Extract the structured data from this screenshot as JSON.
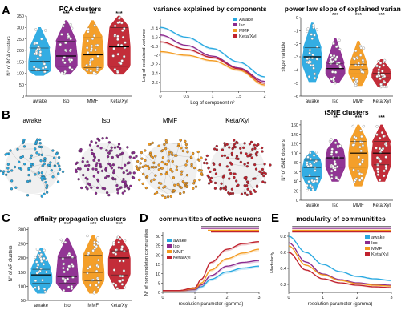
{
  "panel_letters": [
    "A",
    "B",
    "C",
    "D",
    "E"
  ],
  "colors": {
    "awake": "#29a9e1",
    "iso": "#8b2a8e",
    "mmf": "#f39a1f",
    "keta": "#c0222e"
  },
  "chart_data": [
    {
      "id": "pca",
      "type": "violin",
      "title": "PCA clusters",
      "ylabel": "N° of PCA clusters",
      "ylim": [
        0,
        350
      ],
      "yticks": [
        0,
        50,
        100,
        150,
        200,
        250,
        300,
        350
      ],
      "categories": [
        "awake",
        "Iso",
        "MMF",
        "Keta/Xyl"
      ],
      "significance": [
        "",
        "***",
        "***",
        "***"
      ],
      "medians": [
        150,
        175,
        180,
        215
      ],
      "q1": [
        110,
        130,
        125,
        130
      ],
      "q3": [
        210,
        240,
        255,
        300
      ],
      "max": [
        300,
        330,
        330,
        350
      ],
      "min": [
        90,
        95,
        95,
        95
      ]
    },
    {
      "id": "variance",
      "type": "line",
      "title": "variance explained by components",
      "xlabel": "Log of component n°",
      "ylabel": "Log of explained variance",
      "xlim": [
        0,
        2
      ],
      "ylim": [
        -2.8,
        -1.2
      ],
      "xticks": [
        0,
        0.5,
        1,
        1.5,
        2
      ],
      "yticks": [
        -1.4,
        -1.6,
        -1.8,
        -2,
        -2.2,
        -2.4,
        -2.6
      ],
      "legend": [
        "Awake",
        "Iso",
        "MMF",
        "Keta/Xyl"
      ],
      "series": [
        {
          "name": "Awake",
          "x": [
            0,
            0.5,
            1,
            1.5,
            2
          ],
          "y": [
            -1.38,
            -1.6,
            -1.85,
            -2.15,
            -2.48
          ]
        },
        {
          "name": "Iso",
          "x": [
            0,
            0.5,
            1,
            1.5,
            2
          ],
          "y": [
            -1.55,
            -1.78,
            -2.02,
            -2.28,
            -2.58
          ]
        },
        {
          "name": "MMF",
          "x": [
            0,
            0.5,
            1,
            1.5,
            2
          ],
          "y": [
            -1.92,
            -2.0,
            -2.12,
            -2.33,
            -2.66
          ]
        },
        {
          "name": "Keta/Xyl",
          "x": [
            0,
            0.5,
            1,
            1.5,
            2
          ],
          "y": [
            -1.7,
            -1.87,
            -2.05,
            -2.3,
            -2.62
          ]
        }
      ]
    },
    {
      "id": "powerlaw",
      "type": "violin",
      "title": "power law slope of explained variance",
      "ylabel": "slope variable",
      "ylim": [
        -6,
        0
      ],
      "yticks": [
        0,
        -1,
        -2,
        -3,
        -4,
        -5,
        -6
      ],
      "categories": [
        "awake",
        "Iso",
        "MMF",
        "Keta/Xyl"
      ],
      "significance": [
        "",
        "***",
        "***",
        "***"
      ],
      "medians": [
        -3.0,
        -3.9,
        -4.0,
        -4.3
      ],
      "q1": [
        -3.7,
        -4.3,
        -4.3,
        -4.6
      ],
      "q3": [
        -2.3,
        -3.5,
        -3.6,
        -4.0
      ],
      "max": [
        -0.4,
        -1.6,
        -1.8,
        -3.2
      ],
      "min": [
        -4.9,
        -5.0,
        -5.2,
        -5.3
      ]
    },
    {
      "id": "tsne",
      "type": "violin",
      "title": "tSNE clusters",
      "ylabel": "N° of tSNE clusters",
      "ylim": [
        0,
        170
      ],
      "yticks": [
        0,
        20,
        40,
        60,
        80,
        100,
        120,
        140,
        160
      ],
      "categories": [
        "awake",
        "Iso",
        "MMF",
        "Keta/Xyl"
      ],
      "significance": [
        "",
        "**",
        "***",
        "***"
      ],
      "medians": [
        70,
        90,
        100,
        100
      ],
      "q1": [
        50,
        70,
        70,
        75
      ],
      "q3": [
        85,
        105,
        125,
        125
      ],
      "max": [
        105,
        130,
        160,
        160
      ],
      "min": [
        20,
        40,
        30,
        40
      ]
    },
    {
      "id": "affinity",
      "type": "violin",
      "title": "affinity propagation clusters",
      "ylabel": "N° of AP clusters",
      "ylim": [
        50,
        310
      ],
      "yticks": [
        50,
        100,
        150,
        200,
        250,
        300
      ],
      "categories": [
        "awake",
        "Iso",
        "MMF",
        "Keta/Xyl"
      ],
      "significance": [
        "",
        "***",
        "***",
        "***"
      ],
      "medians": [
        140,
        135,
        150,
        200
      ],
      "q1": [
        110,
        110,
        120,
        140
      ],
      "q3": [
        160,
        200,
        210,
        225
      ],
      "max": [
        235,
        270,
        280,
        275
      ],
      "min": [
        75,
        80,
        75,
        90
      ]
    },
    {
      "id": "communities",
      "type": "line",
      "title": "communitites of active neurons",
      "xlabel": "resolution parameter (gamma)",
      "ylabel": "N° of non-singleton communities",
      "xlim": [
        0,
        3
      ],
      "ylim": [
        0,
        32
      ],
      "xticks": [
        0,
        1,
        2,
        3
      ],
      "yticks": [
        0,
        5,
        10,
        15,
        20,
        25,
        30
      ],
      "legend": [
        "awake",
        "Iso",
        "MMF",
        "Keta/Xyl"
      ],
      "series": [
        {
          "name": "awake",
          "x": [
            0,
            0.5,
            1,
            1.2,
            1.5,
            2,
            2.5,
            3
          ],
          "y": [
            1,
            1,
            1.5,
            3,
            7,
            11,
            13,
            14
          ]
        },
        {
          "name": "Iso",
          "x": [
            0,
            0.5,
            1,
            1.2,
            1.5,
            2,
            2.5,
            3
          ],
          "y": [
            1,
            1,
            1.5,
            4,
            9,
            14,
            16,
            17
          ]
        },
        {
          "name": "MMF",
          "x": [
            0,
            0.5,
            1,
            1.2,
            1.5,
            2,
            2.5,
            3
          ],
          "y": [
            1,
            1,
            2,
            5,
            12,
            18,
            21,
            23
          ]
        },
        {
          "name": "Keta/Xyl",
          "x": [
            0,
            0.5,
            1,
            1.2,
            1.5,
            2,
            2.5,
            3
          ],
          "y": [
            1,
            1,
            2.5,
            7,
            16,
            23,
            26,
            27
          ]
        }
      ]
    },
    {
      "id": "modularity",
      "type": "line",
      "title": "modularity of communitites",
      "xlabel": "resolution parameter (gamma)",
      "ylabel": "Modularity",
      "xlim": [
        0,
        3
      ],
      "ylim": [
        0.1,
        0.85
      ],
      "xticks": [
        0,
        1,
        2,
        3
      ],
      "yticks": [
        0.2,
        0.4,
        0.6,
        0.8
      ],
      "legend": [
        "awake",
        "Iso",
        "MMF",
        "Keta/Xyl"
      ],
      "series": [
        {
          "name": "awake",
          "x": [
            0,
            0.5,
            1,
            1.5,
            2,
            2.5,
            3
          ],
          "y": [
            0.8,
            0.6,
            0.45,
            0.36,
            0.3,
            0.27,
            0.25
          ]
        },
        {
          "name": "Iso",
          "x": [
            0,
            0.5,
            1,
            1.5,
            2,
            2.5,
            3
          ],
          "y": [
            0.72,
            0.48,
            0.33,
            0.26,
            0.22,
            0.2,
            0.19
          ]
        },
        {
          "name": "MMF",
          "x": [
            0,
            0.5,
            1,
            1.5,
            2,
            2.5,
            3
          ],
          "y": [
            0.68,
            0.44,
            0.32,
            0.25,
            0.21,
            0.19,
            0.18
          ]
        },
        {
          "name": "Keta/Xyl",
          "x": [
            0,
            0.5,
            1,
            1.5,
            2,
            2.5,
            3
          ],
          "y": [
            0.6,
            0.38,
            0.27,
            0.22,
            0.19,
            0.17,
            0.16
          ]
        }
      ]
    }
  ],
  "network": {
    "labels": [
      "awake",
      "Iso",
      "MMF",
      "Keta/Xyl"
    ]
  }
}
